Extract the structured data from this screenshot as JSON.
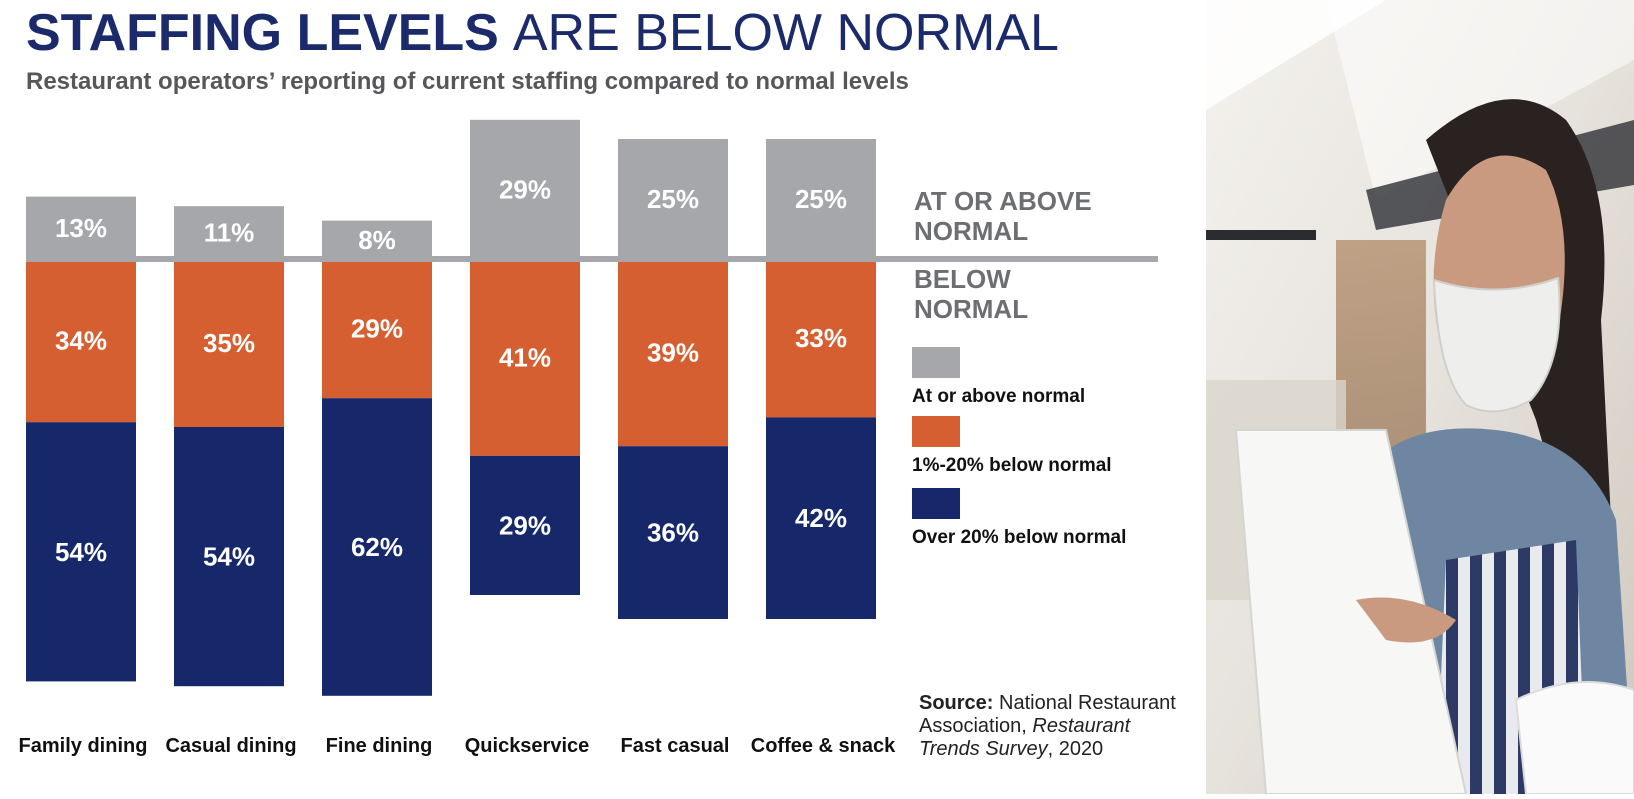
{
  "chart_data": {
    "type": "bar",
    "title_bold": "STAFFING LEVELS",
    "title_light": "ARE BELOW NORMAL",
    "subtitle": "Restaurant operators’ reporting of current staffing compared to normal levels",
    "categories": [
      "Family dining",
      "Casual dining",
      "Fine dining",
      "Quickservice",
      "Fast casual",
      "Coffee & snack"
    ],
    "series": [
      {
        "name": "At or above normal",
        "values": [
          13,
          11,
          8,
          29,
          25,
          25
        ],
        "labels": [
          "13%",
          "11%",
          "8%",
          "29%",
          "25%",
          "25%"
        ],
        "color": "#a6a7ab"
      },
      {
        "name": "1%-20% below normal",
        "values": [
          34,
          35,
          29,
          41,
          39,
          33
        ],
        "labels": [
          "34%",
          "35%",
          "29%",
          "41%",
          "39%",
          "33%"
        ],
        "color": "#d65f31"
      },
      {
        "name": "Over 20% below normal",
        "values": [
          54,
          54,
          62,
          29,
          36,
          42
        ],
        "labels": [
          "54%",
          "54%",
          "62%",
          "29%",
          "36%",
          "42%"
        ],
        "color": "#16286a"
      }
    ],
    "baseline_labels": {
      "above": [
        "AT OR ABOVE",
        "NORMAL"
      ],
      "below": [
        "BELOW",
        "NORMAL"
      ]
    },
    "source": {
      "label": "Source:",
      "text1": " National Restaurant",
      "text2a": "Association, ",
      "text2b": "Restaurant",
      "text3a": "Trends Survey",
      "text3b": ", 2020"
    },
    "colors": {
      "title": "#1b2a6b",
      "subtitle": "#55575b",
      "baseline": "#a6a7ab",
      "baseline_text": "#6d6e72"
    }
  }
}
